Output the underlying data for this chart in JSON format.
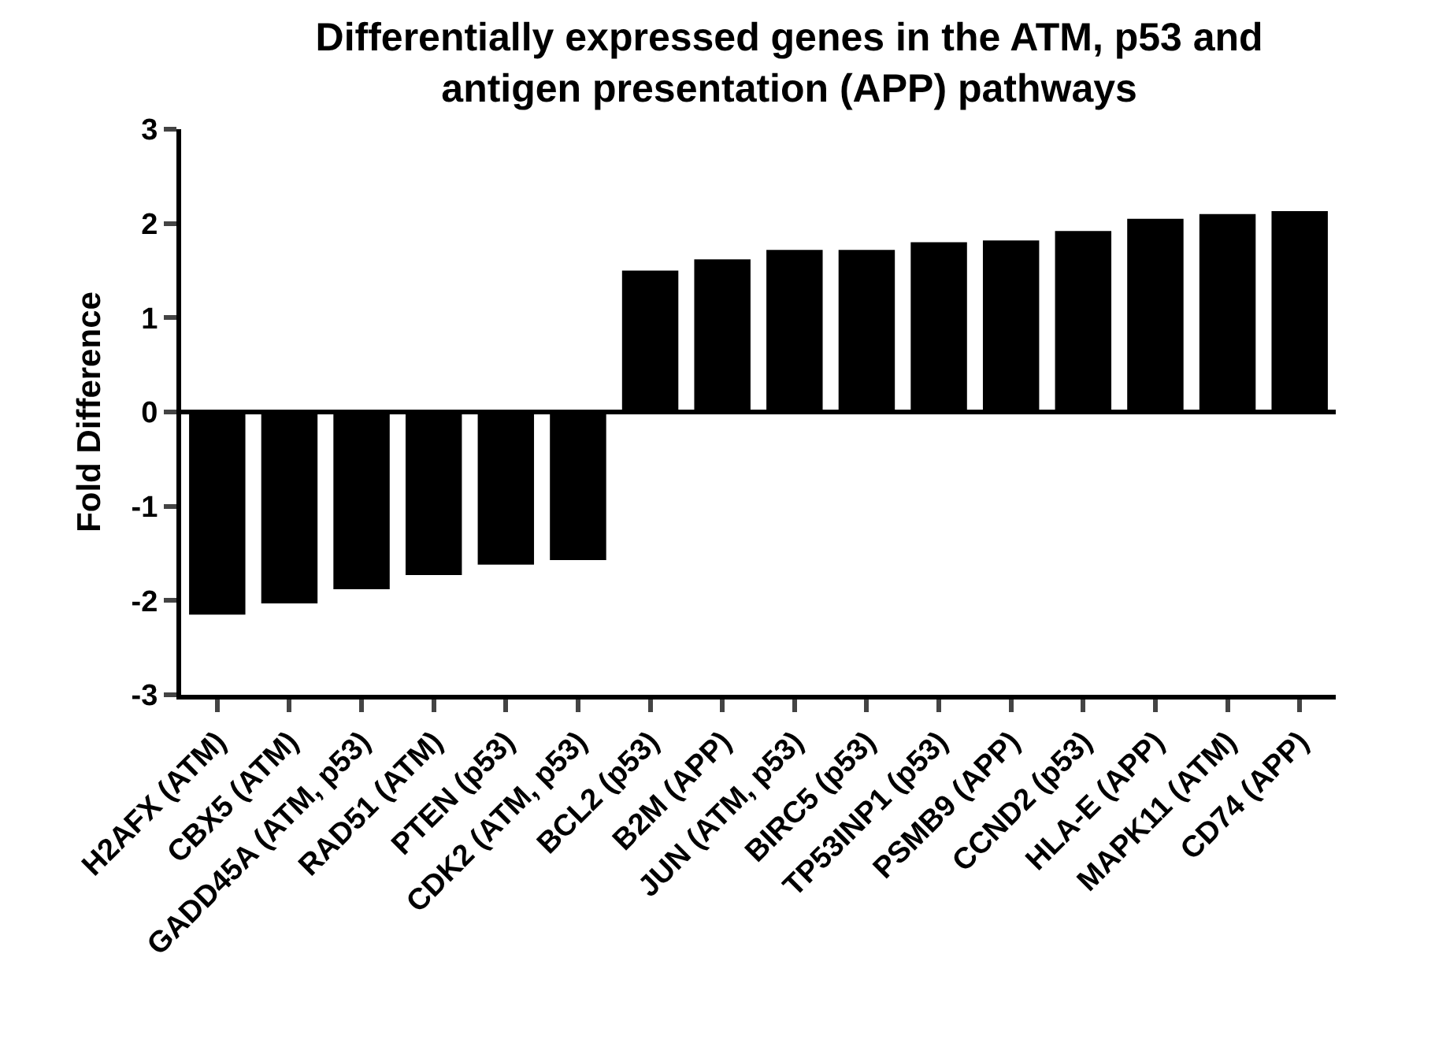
{
  "chart_data": {
    "type": "bar",
    "title": "Differentially expressed genes in the ATM, p53 and antigen presentation (APP) pathways",
    "ylabel": "Fold Difference",
    "categories": [
      "H2AFX (ATM)",
      "CBX5 (ATM)",
      "GADD45A (ATM, p53)",
      "RAD51 (ATM)",
      "PTEN (p53)",
      "CDK2 (ATM, p53)",
      "BCL2 (p53)",
      "B2M (APP)",
      "JUN (ATM, p53)",
      "BIRC5 (p53)",
      "TP53INP1 (p53)",
      "PSMB9 (APP)",
      "CCND2 (p53)",
      "HLA-E (APP)",
      "MAPK11 (ATM)",
      "CD74 (APP)"
    ],
    "values": [
      -2.15,
      -2.03,
      -1.88,
      -1.73,
      -1.62,
      -1.57,
      1.5,
      1.62,
      1.72,
      1.72,
      1.8,
      1.82,
      1.92,
      2.05,
      2.1,
      2.13
    ],
    "color": "#000000",
    "ylim": [
      -3,
      3
    ],
    "yticks": [
      -3,
      -2,
      -1,
      0,
      1,
      2,
      3
    ],
    "grid": false,
    "legend": false,
    "ref_lines": [
      {
        "axis": "y",
        "value": 0,
        "color": "#000000",
        "line_style": "solid"
      }
    ]
  }
}
